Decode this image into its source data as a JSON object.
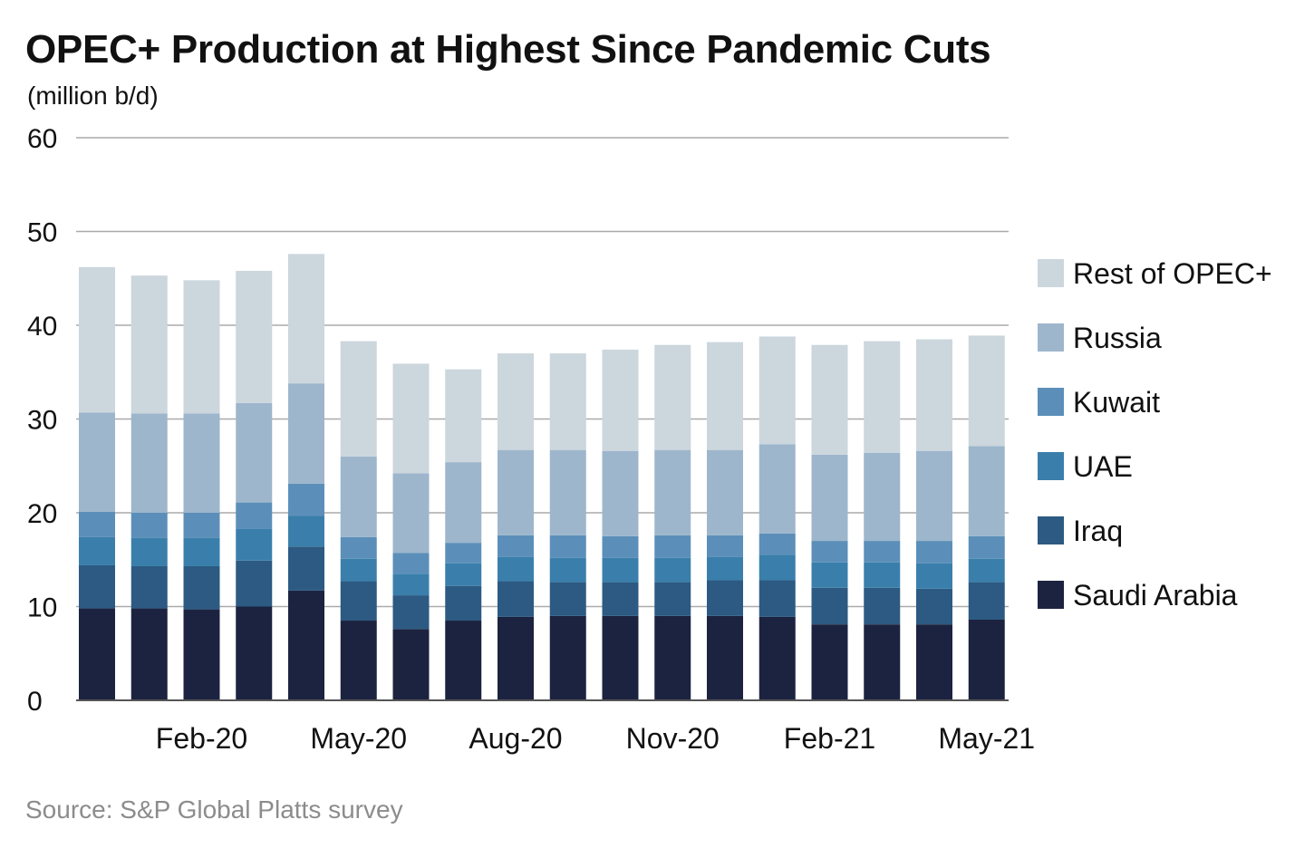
{
  "chart_data": {
    "type": "bar",
    "stacked": true,
    "title": "OPEC+ Production at Highest Since Pandemic Cuts",
    "subtitle": "(million b/d)",
    "source": "Source: S&P Global Platts survey",
    "ylim": [
      0,
      60
    ],
    "yticks": [
      "0",
      "10",
      "20",
      "30",
      "40",
      "50",
      "60"
    ],
    "grid": true,
    "legend_position": "right",
    "categories": [
      "Dec-19",
      "Jan-20",
      "Feb-20",
      "Mar-20",
      "Apr-20",
      "May-20",
      "Jun-20",
      "Jul-20",
      "Aug-20",
      "Sep-20",
      "Oct-20",
      "Nov-20",
      "Dec-20",
      "Jan-21",
      "Feb-21",
      "Mar-21",
      "Apr-21",
      "May-21"
    ],
    "xtick_labels": [
      {
        "index": 2,
        "label": "Feb-20"
      },
      {
        "index": 5,
        "label": "May-20"
      },
      {
        "index": 8,
        "label": "Aug-20"
      },
      {
        "index": 11,
        "label": "Nov-20"
      },
      {
        "index": 14,
        "label": "Feb-21"
      },
      {
        "index": 17,
        "label": "May-21"
      }
    ],
    "series": [
      {
        "name": "Saudi Arabia",
        "color": "#1c2340",
        "values": [
          9.8,
          9.8,
          9.7,
          10.0,
          11.7,
          8.5,
          7.6,
          8.5,
          8.9,
          9.0,
          9.0,
          9.0,
          9.0,
          8.9,
          8.1,
          8.1,
          8.1,
          8.6
        ]
      },
      {
        "name": "Iraq",
        "color": "#2c5a82",
        "values": [
          4.6,
          4.5,
          4.6,
          4.9,
          4.7,
          4.2,
          3.6,
          3.7,
          3.8,
          3.6,
          3.6,
          3.6,
          3.8,
          3.9,
          3.9,
          3.9,
          3.8,
          4.0
        ]
      },
      {
        "name": "UAE",
        "color": "#3a7fab",
        "values": [
          3.0,
          3.0,
          3.0,
          3.4,
          3.3,
          2.4,
          2.3,
          2.4,
          2.6,
          2.6,
          2.6,
          2.6,
          2.5,
          2.7,
          2.7,
          2.7,
          2.7,
          2.5
        ]
      },
      {
        "name": "Kuwait",
        "color": "#5b8fb9",
        "values": [
          2.7,
          2.7,
          2.7,
          2.8,
          3.4,
          2.3,
          2.2,
          2.2,
          2.3,
          2.4,
          2.3,
          2.4,
          2.3,
          2.3,
          2.3,
          2.3,
          2.4,
          2.4
        ]
      },
      {
        "name": "Russia",
        "color": "#9db6cc",
        "values": [
          10.6,
          10.6,
          10.6,
          10.6,
          10.7,
          8.6,
          8.5,
          8.6,
          9.1,
          9.1,
          9.1,
          9.1,
          9.1,
          9.5,
          9.2,
          9.4,
          9.6,
          9.6
        ]
      },
      {
        "name": "Rest of OPEC+",
        "color": "#ccd6dd",
        "values": [
          15.5,
          14.7,
          14.2,
          14.1,
          13.8,
          12.3,
          11.7,
          9.9,
          10.3,
          10.3,
          10.8,
          11.2,
          11.5,
          11.5,
          11.7,
          11.9,
          11.9,
          11.8
        ]
      }
    ]
  }
}
